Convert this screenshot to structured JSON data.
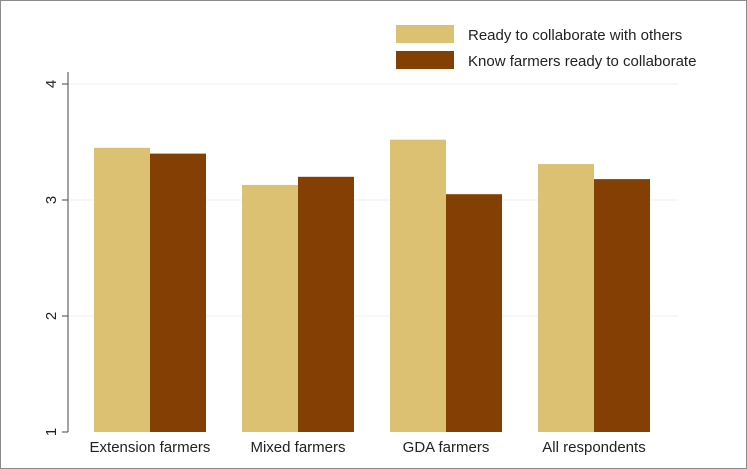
{
  "chart_data": {
    "type": "bar",
    "categories": [
      "Extension farmers",
      "Mixed farmers",
      "GDA farmers",
      "All respondents"
    ],
    "series": [
      {
        "name": "Ready to collaborate with others",
        "color": "#DBC171",
        "values": [
          3.45,
          3.13,
          3.52,
          3.31
        ]
      },
      {
        "name": "Know farmers ready to collaborate",
        "color": "#843F05",
        "values": [
          3.4,
          3.2,
          3.05,
          3.18
        ]
      }
    ],
    "title": "",
    "xlabel": "",
    "ylabel": "",
    "ylim": [
      1,
      4
    ],
    "yticks": [
      "1",
      "2",
      "3",
      "4"
    ],
    "grid": true,
    "legend_position": "top-right"
  }
}
